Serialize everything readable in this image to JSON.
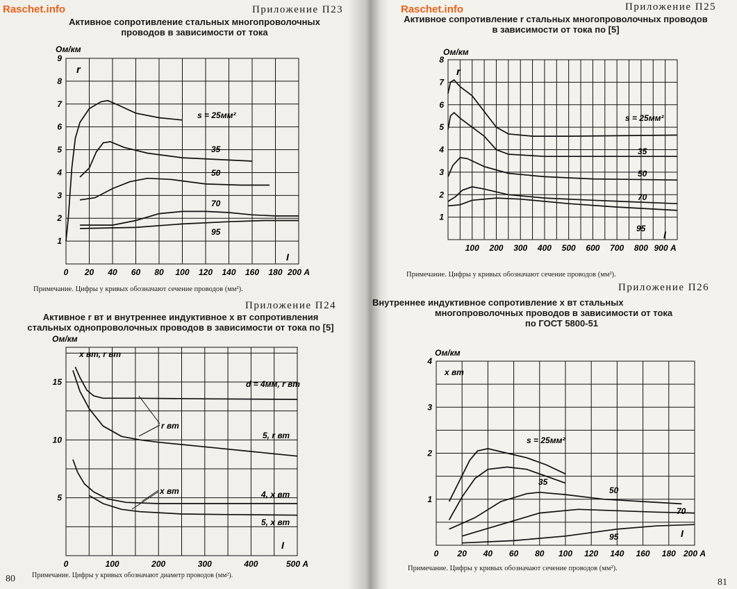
{
  "watermark": "Raschet.info",
  "left_page": {
    "page_number": "80",
    "p23": {
      "appendix": "Приложение П23",
      "title_line1": "Активное сопротивление стальных многопроволочных",
      "title_line2": "проводов в зависимости от тока",
      "note": "Примечание. Цифры у кривых обозначают сечение проводов (мм²)."
    },
    "p24": {
      "appendix": "Приложение П24",
      "title_line1": "Активное r вт и внутреннее индуктивное x вт сопротивления",
      "title_line2": "стальных однопроволочных проводов в зависимости от тока по [5]",
      "note": "Примечание. Цифры у кривых обозначают диаметр проводов (мм²)."
    }
  },
  "right_page": {
    "page_number": "81",
    "p25": {
      "appendix": "Приложение П25",
      "title_line1": "Активное сопротивление r стальных многопроволочных проводов",
      "title_line2": "в зависимости от тока по [5]",
      "note": "Примечание. Цифры у кривых обозначают сечение проводов (мм²)."
    },
    "p26": {
      "appendix": "Приложение П26",
      "title_line1": "Внутреннее индуктивное сопротивление x вт стальных",
      "title_line2": "многопроволочных проводов в зависимости от тока",
      "title_line3": "по ГОСТ 5800-51",
      "note": "Примечание. Цифры у кривых обозначают сечение проводов (мм²)."
    }
  },
  "chart_data": [
    {
      "id": "p23",
      "type": "line",
      "ylabel": "Ом/км",
      "xlabel": "I",
      "symbol": "r",
      "x_ticks": [
        "0",
        "20",
        "40",
        "60",
        "80",
        "100",
        "120",
        "140",
        "160",
        "180",
        "200 А"
      ],
      "y_ticks": [
        "1",
        "2",
        "3",
        "4",
        "5",
        "6",
        "7",
        "8",
        "9"
      ],
      "xlim": [
        0,
        200
      ],
      "ylim": [
        0,
        9
      ],
      "series": [
        {
          "name": "s = 25мм²",
          "points": [
            [
              0,
              1.0
            ],
            [
              2,
              2.0
            ],
            [
              5,
              4.2
            ],
            [
              8,
              5.5
            ],
            [
              12,
              6.2
            ],
            [
              20,
              6.8
            ],
            [
              30,
              7.1
            ],
            [
              36,
              7.15
            ],
            [
              45,
              6.95
            ],
            [
              60,
              6.6
            ],
            [
              80,
              6.4
            ],
            [
              100,
              6.3
            ]
          ]
        },
        {
          "name": "35",
          "points": [
            [
              12,
              3.8
            ],
            [
              20,
              4.2
            ],
            [
              26,
              4.9
            ],
            [
              32,
              5.3
            ],
            [
              38,
              5.35
            ],
            [
              50,
              5.1
            ],
            [
              70,
              4.85
            ],
            [
              100,
              4.65
            ],
            [
              140,
              4.55
            ],
            [
              160,
              4.5
            ]
          ]
        },
        {
          "name": "50",
          "points": [
            [
              12,
              2.8
            ],
            [
              25,
              2.9
            ],
            [
              40,
              3.3
            ],
            [
              55,
              3.6
            ],
            [
              70,
              3.75
            ],
            [
              90,
              3.7
            ],
            [
              120,
              3.5
            ],
            [
              150,
              3.45
            ],
            [
              175,
              3.45
            ]
          ]
        },
        {
          "name": "70",
          "points": [
            [
              12,
              1.7
            ],
            [
              40,
              1.7
            ],
            [
              60,
              1.9
            ],
            [
              80,
              2.2
            ],
            [
              100,
              2.3
            ],
            [
              120,
              2.3
            ],
            [
              140,
              2.25
            ],
            [
              160,
              2.15
            ],
            [
              180,
              2.1
            ],
            [
              200,
              2.1
            ]
          ]
        },
        {
          "name": "95",
          "points": [
            [
              12,
              1.55
            ],
            [
              60,
              1.6
            ],
            [
              100,
              1.75
            ],
            [
              140,
              1.85
            ],
            [
              170,
              1.9
            ],
            [
              200,
              1.9
            ]
          ]
        }
      ]
    },
    {
      "id": "p24",
      "type": "line",
      "ylabel": "Ом/км",
      "xlabel": "I",
      "y_title": "x вт, r вт",
      "x_ticks": [
        "0",
        "100",
        "200",
        "300",
        "400",
        "500 А"
      ],
      "y_ticks": [
        "5",
        "10",
        "15"
      ],
      "xlim": [
        0,
        500
      ],
      "ylim": [
        0,
        18
      ],
      "series": [
        {
          "name": "d = 4мм, r вт",
          "points": [
            [
              20,
              16.3
            ],
            [
              30,
              15.4
            ],
            [
              45,
              14.3
            ],
            [
              60,
              13.8
            ],
            [
              80,
              13.6
            ],
            [
              150,
              13.6
            ],
            [
              300,
              13.55
            ],
            [
              500,
              13.5
            ]
          ]
        },
        {
          "name": "5, r вт",
          "points": [
            [
              15,
              16.0
            ],
            [
              30,
              14.2
            ],
            [
              50,
              12.7
            ],
            [
              80,
              11.2
            ],
            [
              120,
              10.3
            ],
            [
              160,
              10.0
            ],
            [
              200,
              9.8
            ],
            [
              300,
              9.4
            ],
            [
              400,
              9.0
            ],
            [
              500,
              8.6
            ]
          ]
        },
        {
          "name": "4, x вт",
          "points": [
            [
              15,
              8.3
            ],
            [
              25,
              7.2
            ],
            [
              40,
              6.2
            ],
            [
              60,
              5.5
            ],
            [
              90,
              4.9
            ],
            [
              130,
              4.6
            ],
            [
              200,
              4.5
            ],
            [
              300,
              4.5
            ],
            [
              500,
              4.5
            ]
          ]
        },
        {
          "name": "5, x вт",
          "points": [
            [
              50,
              5.2
            ],
            [
              80,
              4.5
            ],
            [
              120,
              4.0
            ],
            [
              160,
              3.8
            ],
            [
              250,
              3.6
            ],
            [
              350,
              3.55
            ],
            [
              500,
              3.5
            ]
          ]
        }
      ],
      "annotations": [
        "r вт",
        "x вт"
      ]
    },
    {
      "id": "p25",
      "type": "line",
      "ylabel": "Ом/км",
      "xlabel": "I",
      "symbol": "r",
      "x_ticks": [
        "100",
        "200",
        "300",
        "400",
        "500",
        "600",
        "700",
        "800",
        "900 А"
      ],
      "y_ticks": [
        "1",
        "2",
        "3",
        "4",
        "5",
        "6",
        "7",
        "8"
      ],
      "xlim": [
        0,
        950
      ],
      "ylim": [
        0,
        8
      ],
      "series": [
        {
          "name": "s = 25мм²",
          "points": [
            [
              0,
              6.5
            ],
            [
              10,
              7.0
            ],
            [
              25,
              7.1
            ],
            [
              50,
              6.8
            ],
            [
              100,
              6.4
            ],
            [
              150,
              5.7
            ],
            [
              200,
              5.0
            ],
            [
              250,
              4.7
            ],
            [
              350,
              4.6
            ],
            [
              500,
              4.6
            ],
            [
              950,
              4.65
            ]
          ]
        },
        {
          "name": "35",
          "points": [
            [
              0,
              4.9
            ],
            [
              10,
              5.5
            ],
            [
              25,
              5.65
            ],
            [
              50,
              5.4
            ],
            [
              100,
              5.0
            ],
            [
              150,
              4.6
            ],
            [
              200,
              4.0
            ],
            [
              250,
              3.8
            ],
            [
              400,
              3.7
            ],
            [
              700,
              3.7
            ],
            [
              950,
              3.7
            ]
          ]
        },
        {
          "name": "50",
          "points": [
            [
              0,
              2.8
            ],
            [
              20,
              3.3
            ],
            [
              50,
              3.65
            ],
            [
              80,
              3.6
            ],
            [
              150,
              3.25
            ],
            [
              250,
              2.95
            ],
            [
              400,
              2.8
            ],
            [
              600,
              2.7
            ],
            [
              950,
              2.65
            ]
          ]
        },
        {
          "name": "70",
          "points": [
            [
              0,
              1.7
            ],
            [
              30,
              1.9
            ],
            [
              60,
              2.2
            ],
            [
              100,
              2.35
            ],
            [
              150,
              2.25
            ],
            [
              250,
              2.0
            ],
            [
              400,
              1.85
            ],
            [
              600,
              1.75
            ],
            [
              950,
              1.6
            ]
          ]
        },
        {
          "name": "95",
          "points": [
            [
              0,
              1.5
            ],
            [
              50,
              1.55
            ],
            [
              100,
              1.75
            ],
            [
              200,
              1.85
            ],
            [
              300,
              1.8
            ],
            [
              500,
              1.6
            ],
            [
              700,
              1.45
            ],
            [
              950,
              1.3
            ]
          ]
        }
      ]
    },
    {
      "id": "p26",
      "type": "line",
      "ylabel": "Ом/км",
      "xlabel": "I",
      "y_title": "x вт",
      "x_ticks": [
        "0",
        "20",
        "40",
        "60",
        "80",
        "100",
        "120",
        "140",
        "160",
        "180",
        "200 А"
      ],
      "y_ticks": [
        "1",
        "2",
        "3",
        "4"
      ],
      "xlim": [
        0,
        200
      ],
      "ylim": [
        0,
        4
      ],
      "series": [
        {
          "name": "s = 25мм²",
          "points": [
            [
              10,
              0.95
            ],
            [
              18,
              1.4
            ],
            [
              26,
              1.85
            ],
            [
              32,
              2.05
            ],
            [
              40,
              2.1
            ],
            [
              55,
              2.0
            ],
            [
              70,
              1.9
            ],
            [
              85,
              1.75
            ],
            [
              100,
              1.55
            ]
          ]
        },
        {
          "name": "35",
          "points": [
            [
              10,
              0.55
            ],
            [
              20,
              1.05
            ],
            [
              30,
              1.45
            ],
            [
              40,
              1.65
            ],
            [
              55,
              1.7
            ],
            [
              70,
              1.65
            ],
            [
              85,
              1.5
            ],
            [
              100,
              1.35
            ]
          ]
        },
        {
          "name": "50",
          "points": [
            [
              10,
              0.35
            ],
            [
              30,
              0.6
            ],
            [
              50,
              0.95
            ],
            [
              70,
              1.12
            ],
            [
              80,
              1.15
            ],
            [
              100,
              1.1
            ],
            [
              130,
              1.0
            ],
            [
              160,
              0.95
            ],
            [
              190,
              0.9
            ]
          ]
        },
        {
          "name": "70",
          "points": [
            [
              20,
              0.2
            ],
            [
              50,
              0.45
            ],
            [
              80,
              0.7
            ],
            [
              110,
              0.78
            ],
            [
              140,
              0.75
            ],
            [
              170,
              0.72
            ],
            [
              200,
              0.7
            ]
          ]
        },
        {
          "name": "95",
          "points": [
            [
              20,
              0.05
            ],
            [
              60,
              0.1
            ],
            [
              100,
              0.2
            ],
            [
              140,
              0.35
            ],
            [
              170,
              0.42
            ],
            [
              200,
              0.45
            ]
          ]
        }
      ]
    }
  ]
}
